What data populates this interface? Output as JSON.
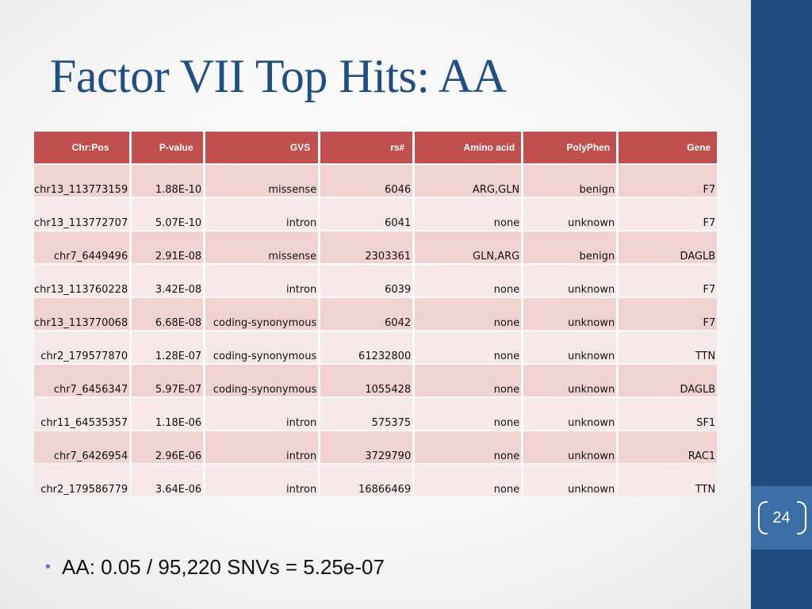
{
  "slide": {
    "title": "Factor VII Top Hits: AA",
    "page_number": "24"
  },
  "table": {
    "headers": [
      "Chr:Pos",
      "P-value",
      "GVS",
      "rs#",
      "Amino acid",
      "PolyPhen",
      "Gene"
    ],
    "rows": [
      [
        "chr13_113773159",
        "1.88E-10",
        "missense",
        "6046",
        "ARG,GLN",
        "benign",
        "F7"
      ],
      [
        "chr13_113772707",
        "5.07E-10",
        "intron",
        "6041",
        "none",
        "unknown",
        "F7"
      ],
      [
        "chr7_6449496",
        "2.91E-08",
        "missense",
        "2303361",
        "GLN,ARG",
        "benign",
        "DAGLB"
      ],
      [
        "chr13_113760228",
        "3.42E-08",
        "intron",
        "6039",
        "none",
        "unknown",
        "F7"
      ],
      [
        "chr13_113770068",
        "6.68E-08",
        "coding-synonymous",
        "6042",
        "none",
        "unknown",
        "F7"
      ],
      [
        "chr2_179577870",
        "1.28E-07",
        "coding-synonymous",
        "61232800",
        "none",
        "unknown",
        "TTN"
      ],
      [
        "chr7_6456347",
        "5.97E-07",
        "coding-synonymous",
        "1055428",
        "none",
        "unknown",
        "DAGLB"
      ],
      [
        "chr11_64535357",
        "1.18E-06",
        "intron",
        "575375",
        "none",
        "unknown",
        "SF1"
      ],
      [
        "chr7_6426954",
        "2.96E-06",
        "intron",
        "3729790",
        "none",
        "unknown",
        "RAC1"
      ],
      [
        "chr2_179586779",
        "3.64E-06",
        "intron",
        "16866469",
        "none",
        "unknown",
        "TTN"
      ]
    ]
  },
  "bullets": [
    "AA: 0.05 / 95,220 SNVs = 5.25e-07"
  ],
  "colors": {
    "title": "#1f4e86",
    "header_fill": "#c0504d",
    "row_fill_a": "#efd3d2",
    "row_fill_b": "#f7e9e9",
    "sidebar": "#1f4b7e",
    "page_box": "#3a6ea5",
    "bullet_dot": "#4f81bd"
  }
}
